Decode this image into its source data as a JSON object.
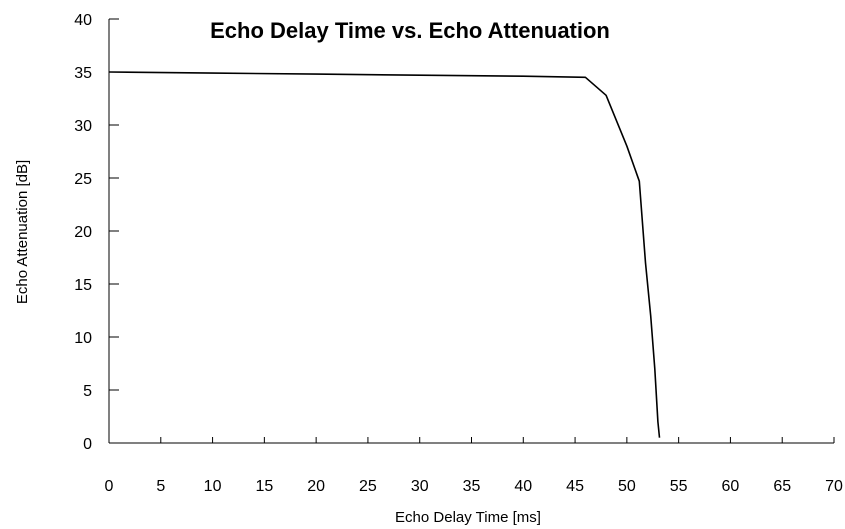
{
  "chart_data": {
    "type": "line",
    "title": "Echo Delay Time vs. Echo Attenuation",
    "xlabel": "Echo Delay Time [ms]",
    "ylabel": "Echo Attenuation [dB]",
    "xlim": [
      0,
      70
    ],
    "ylim": [
      0,
      40
    ],
    "xticks": [
      0,
      5,
      10,
      15,
      20,
      25,
      30,
      35,
      40,
      45,
      50,
      55,
      60,
      65,
      70
    ],
    "yticks": [
      0,
      5,
      10,
      15,
      20,
      25,
      30,
      35,
      40
    ],
    "grid": false,
    "legend": "none",
    "series": [
      {
        "color": "#000000",
        "x": [
          0,
          10,
          20,
          30,
          40,
          46,
          48,
          50,
          51.2,
          51.8,
          52.3,
          52.7,
          53.0,
          53.15
        ],
        "y": [
          35,
          34.9,
          34.8,
          34.7,
          34.6,
          34.5,
          32.8,
          28,
          24.7,
          17,
          12,
          7,
          2,
          0.5
        ]
      }
    ]
  }
}
